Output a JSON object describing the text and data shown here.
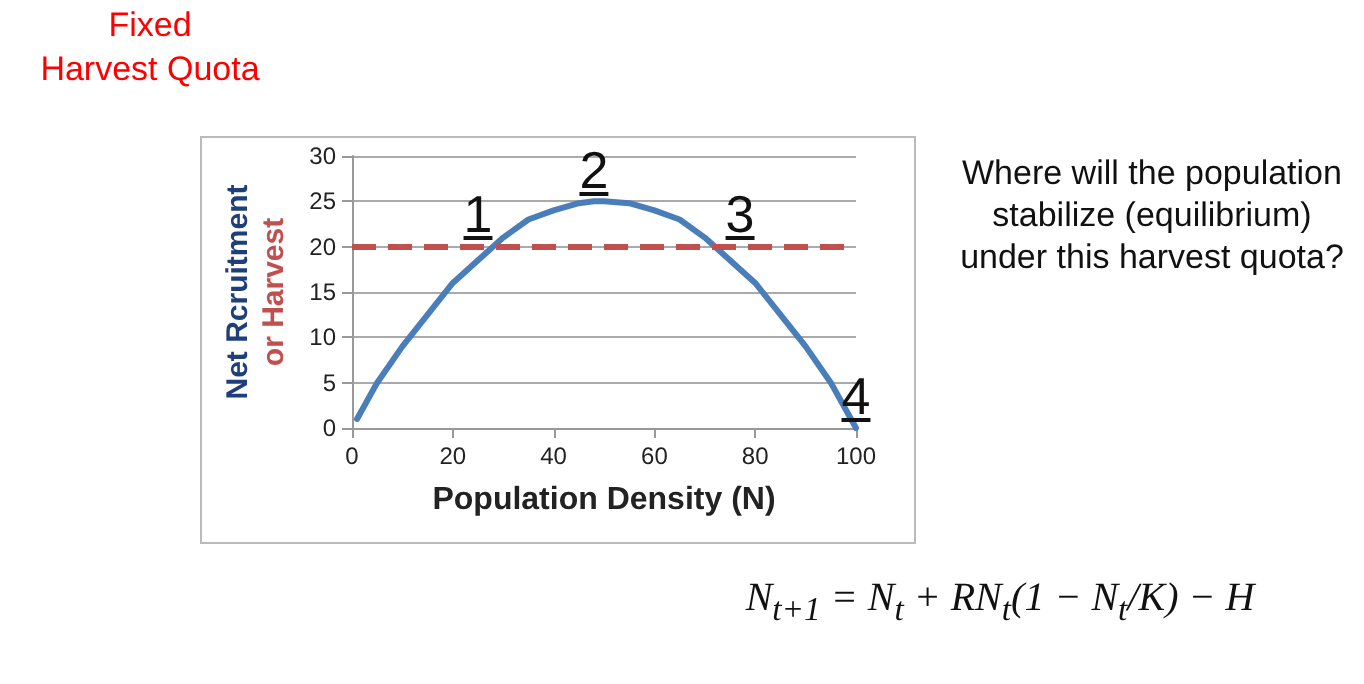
{
  "chart_data": {
    "type": "line",
    "title": "Fixed\nHarvest Quota",
    "xlabel": "Population Density (N)",
    "ylabel": "Net Rcruitment\nor Harvest",
    "series": [
      {
        "color": "#4a7ebb",
        "x": [
          1,
          5,
          10,
          15,
          20,
          25,
          30,
          35,
          40,
          45,
          48,
          50,
          55,
          60,
          65,
          70,
          75,
          80,
          85,
          90,
          95,
          100
        ],
        "values": [
          1,
          5,
          9,
          12.5,
          16,
          18.5,
          21,
          23,
          24,
          24.8,
          25,
          25,
          24.8,
          24,
          23,
          21,
          18.5,
          16,
          12.5,
          9,
          5,
          0
        ]
      }
    ],
    "xlim": [
      0,
      100
    ],
    "xticks": [
      0,
      20,
      40,
      60,
      80,
      100
    ],
    "ylim": [
      0,
      30
    ],
    "yticks": [
      0,
      5,
      10,
      15,
      20,
      25,
      30
    ],
    "grid": "y",
    "marker": "none",
    "line_style": "solid",
    "ref_lines": [
      {
        "axis": "y",
        "value": 20,
        "color": "#c0504d",
        "line_style": "dashed"
      }
    ],
    "annotations": [
      {
        "text": "1",
        "x": 25,
        "y": 20
      },
      {
        "text": "2",
        "x": 48,
        "y": 25
      },
      {
        "text": "3",
        "x": 77,
        "y": 20
      },
      {
        "text": "4",
        "x": 100,
        "y": 0
      },
      "Where will the population stabilize (equilibrium) under this harvest quota?",
      "N$_{t+1}$ = N$_{t}$ + RN$_{t}$(1 − N$_{t}$/K) − H"
    ]
  }
}
